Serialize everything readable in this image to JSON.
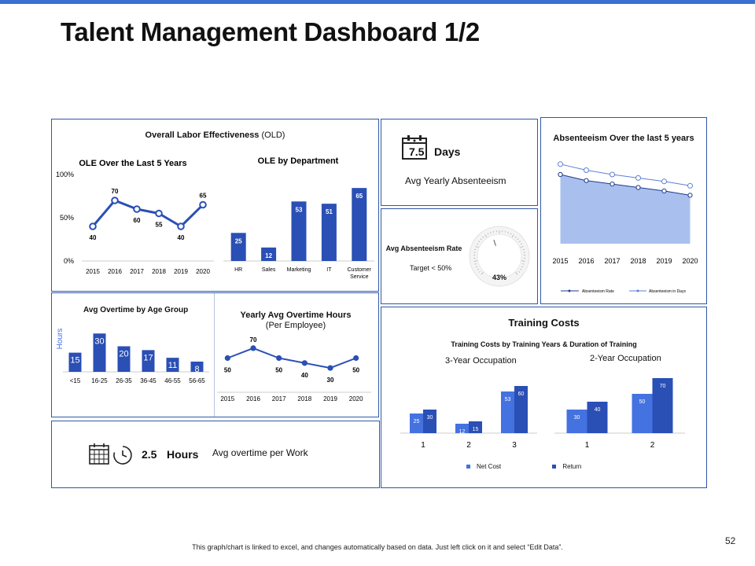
{
  "page": {
    "title": "Talent Management Dashboard 1/2",
    "footnote": "This graph/chart is linked to excel, and changes automatically based on data. Just left click on it and select “Edit Data”.",
    "page_number": "52",
    "accent_color": "#3b6fd1",
    "bar_color": "#2a4fb5"
  },
  "labor_panel": {
    "title_bold": "Overall Labor Effectiveness",
    "title_normal": "(OLD)"
  },
  "absent_kpi": {
    "value": "7.5",
    "unit": "Days",
    "label": "Avg Yearly Absenteeism",
    "icon": "calendar-icon"
  },
  "absent_rate": {
    "title": "Avg Absenteeism Rate",
    "target": "Target < 50%",
    "value_label": "43%"
  },
  "overtime_kpi": {
    "value": "2.5",
    "unit": "Hours",
    "label": "Avg overtime per Work",
    "icons": [
      "calendar-grid-icon",
      "clock-icon"
    ]
  },
  "training": {
    "panel_title": "Training Costs",
    "chart_title": "Training Costs by Training Years & Duration of Training"
  },
  "chart_data": [
    {
      "id": "ole_years",
      "type": "line",
      "title": "OLE Over the Last 5 Years",
      "categories": [
        "2015",
        "2016",
        "2017",
        "2018",
        "2019",
        "2020"
      ],
      "values": [
        40,
        70,
        60,
        55,
        40,
        65
      ],
      "ylim": [
        0,
        100
      ],
      "y_ticks": [
        "0%",
        "50%",
        "100%"
      ],
      "color": "#2a4fb5"
    },
    {
      "id": "ole_dept",
      "type": "bar",
      "title": "OLE by Department",
      "categories": [
        "HR",
        "Sales",
        "Marketing",
        "IT",
        "Customer Service"
      ],
      "values": [
        25,
        12,
        53,
        51,
        65
      ],
      "ylim": [
        0,
        70
      ],
      "color": "#2a4fb5"
    },
    {
      "id": "absent_trend",
      "type": "area",
      "title": "Absenteeism Over the last 5 years",
      "categories": [
        "2015",
        "2016",
        "2017",
        "2018",
        "2019",
        "2020"
      ],
      "series": [
        {
          "name": "Absenteeism Rate",
          "values": [
            8.0,
            7.3,
            6.9,
            6.5,
            6.1,
            5.6
          ]
        },
        {
          "name": "Absenteeism in Days",
          "values": [
            9.2,
            8.5,
            8.0,
            7.6,
            7.2,
            6.7
          ]
        }
      ],
      "ylim": [
        0,
        10
      ],
      "fill_color": "#a9c0ef",
      "line_color": "#5b7fd6"
    },
    {
      "id": "absent_gauge",
      "type": "gauge",
      "value": 43,
      "range": [
        0,
        100
      ]
    },
    {
      "id": "overtime_age",
      "type": "bar",
      "title": "Avg Overtime by Age Group",
      "ylabel": "Hours",
      "categories": [
        "<15",
        "16-25",
        "26-35",
        "36-45",
        "46-55",
        "56-65"
      ],
      "values": [
        15,
        30,
        20,
        17,
        11,
        8
      ],
      "ylim": [
        0,
        32
      ],
      "color": "#2a4fb5"
    },
    {
      "id": "overtime_yearly",
      "type": "line",
      "title": "Yearly Avg Overtime Hours",
      "subtitle": "(Per Employee)",
      "categories": [
        "2015",
        "2016",
        "2017",
        "2018",
        "2019",
        "2020"
      ],
      "values": [
        50,
        70,
        50,
        40,
        30,
        50
      ],
      "ylim": [
        0,
        100
      ],
      "color": "#2a4fb5"
    },
    {
      "id": "training_3yr",
      "type": "bar",
      "title": "3-Year Occupation",
      "categories": [
        "1",
        "2",
        "3"
      ],
      "series": [
        {
          "name": "Net Cost",
          "values": [
            25,
            12,
            53
          ],
          "color": "#4472e0"
        },
        {
          "name": "Return",
          "values": [
            30,
            15,
            60
          ],
          "color": "#2a4fb5"
        }
      ],
      "ylim": [
        0,
        70
      ]
    },
    {
      "id": "training_2yr",
      "type": "bar",
      "title": "2-Year Occupation",
      "categories": [
        "1",
        "2"
      ],
      "series": [
        {
          "name": "Net Cost",
          "values": [
            30,
            50
          ],
          "color": "#4472e0"
        },
        {
          "name": "Return",
          "values": [
            40,
            70
          ],
          "color": "#2a4fb5"
        }
      ],
      "ylim": [
        0,
        70
      ]
    }
  ]
}
